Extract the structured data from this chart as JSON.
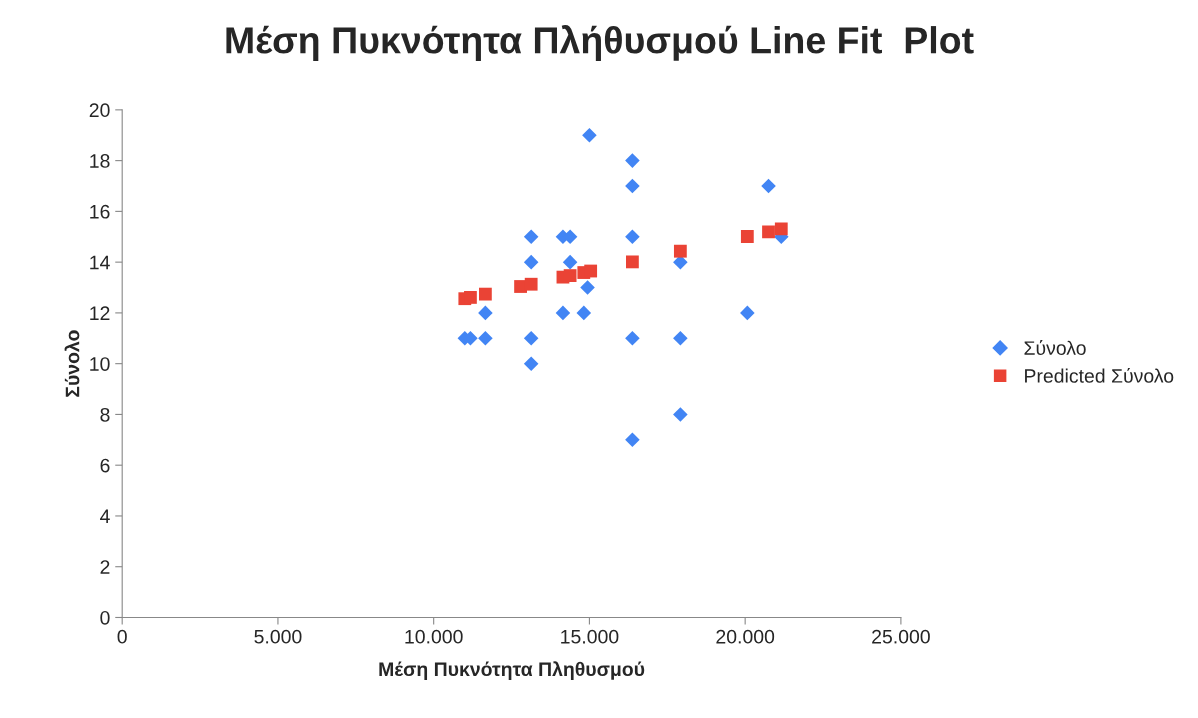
{
  "chart_data": {
    "type": "scatter",
    "title": "Μέση Πυκνότητα Πλήθυσμού Line Fit  Plot",
    "xlabel": "Μέση Πυκνότητα Πληθυσμού",
    "ylabel": "Σύνολο",
    "xlim": [
      0,
      25000
    ],
    "xticks": [
      {
        "value": 0,
        "label": "0"
      },
      {
        "value": 5000,
        "label": "5.000"
      },
      {
        "value": 10000,
        "label": "10.000"
      },
      {
        "value": 15000,
        "label": "15.000"
      },
      {
        "value": 20000,
        "label": "20.000"
      },
      {
        "value": 25000,
        "label": "25.000"
      }
    ],
    "ylim": [
      0,
      20
    ],
    "yticks": [
      0,
      2,
      4,
      6,
      8,
      10,
      12,
      14,
      16,
      18,
      20
    ],
    "grid": false,
    "legend": "right",
    "series": [
      {
        "name": "Σύνολο",
        "color": "#4285f4",
        "marker": "diamond",
        "x": [
          15000,
          16380,
          16380,
          16380,
          16380,
          16380,
          13130,
          13130,
          13130,
          13130,
          14150,
          14150,
          14380,
          14380,
          14940,
          14820,
          11660,
          11660,
          11000,
          11180,
          17920,
          17920,
          17920,
          20750,
          20070,
          21160
        ],
        "values": [
          19,
          18,
          17,
          15,
          11,
          7,
          15,
          14,
          11,
          10,
          15,
          12,
          15,
          14,
          13,
          12,
          12,
          11,
          11,
          11,
          14,
          11,
          8,
          17,
          12,
          15
        ]
      },
      {
        "name": "Predicted Σύνολο",
        "color": "#ea4335",
        "marker": "square",
        "x": [
          11000,
          11180,
          11660,
          12790,
          13130,
          14150,
          14380,
          14820,
          15040,
          16380,
          17920,
          20070,
          20750,
          21160
        ],
        "values": [
          12.56,
          12.61,
          12.74,
          13.04,
          13.13,
          13.41,
          13.47,
          13.59,
          13.65,
          14.01,
          14.43,
          15.01,
          15.19,
          15.31
        ]
      }
    ]
  }
}
